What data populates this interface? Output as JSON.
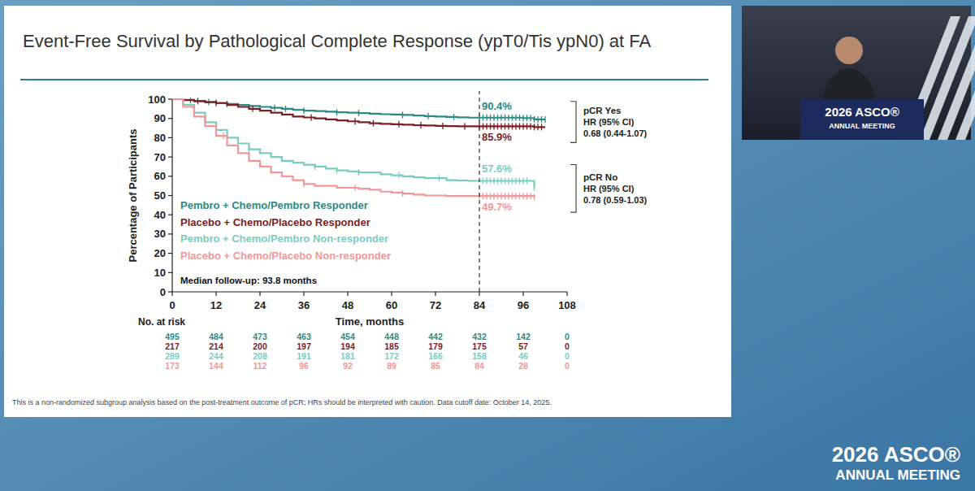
{
  "chart_data": {
    "type": "step",
    "title": "Event-Free Survival by Pathological Complete Response (ypT0/Tis ypN0) at FA",
    "x_label": "Time, months",
    "y_label": "Percentage of Participants",
    "x": [
      0,
      3,
      6,
      9,
      12,
      15,
      18,
      21,
      24,
      27,
      30,
      33,
      36,
      39,
      42,
      45,
      48,
      51,
      54,
      57,
      60,
      63,
      66,
      69,
      72,
      75,
      78,
      81,
      84,
      87,
      90,
      93,
      96,
      99,
      102
    ],
    "series": [
      {
        "name": "Pembro + Chemo/Pembro Responder",
        "color": "#2b8a85",
        "values": [
          100,
          99.6,
          99,
          98.5,
          98,
          97.5,
          97,
          96.5,
          96,
          95.5,
          95,
          94.5,
          94,
          93.8,
          93.5,
          93.2,
          93,
          92.8,
          92.5,
          92.2,
          92,
          91.8,
          91.5,
          91.2,
          91,
          90.8,
          90.6,
          90.4,
          90.4,
          90.4,
          90.4,
          90.4,
          90.2,
          89.5,
          89.5
        ],
        "censored": [
          5,
          10,
          15,
          28,
          31,
          36,
          45,
          51,
          63,
          70,
          77,
          84,
          85,
          86,
          87,
          88,
          89,
          90,
          91,
          92,
          93,
          94,
          95,
          96,
          97,
          98,
          99,
          100,
          101,
          102
        ]
      },
      {
        "name": "Placebo + Chemo/Placebo Responder",
        "color": "#7a1e24",
        "values": [
          100,
          99.5,
          99,
          98.5,
          98,
          97,
          96,
          95,
          94,
          93,
          92,
          91,
          90.5,
          90,
          89.5,
          89,
          88.5,
          88,
          87.5,
          87.2,
          87,
          86.8,
          86.5,
          86.3,
          86.1,
          86,
          85.9,
          85.9,
          85.9,
          85.9,
          85.9,
          85.9,
          85.9,
          85.5,
          85.5
        ],
        "censored": [
          7,
          12,
          22,
          38,
          50,
          55,
          62,
          68,
          74,
          80,
          84,
          85,
          86,
          87,
          88,
          89,
          90,
          91,
          92,
          93,
          94,
          95,
          96,
          97,
          98,
          99,
          100,
          101
        ]
      },
      {
        "name": "Pembro + Chemo/Pembro Non-responder",
        "color": "#78cdbd",
        "values": [
          100,
          97,
          93,
          88,
          84,
          80,
          77,
          74,
          72,
          70,
          68,
          67,
          66,
          65,
          64,
          63,
          62.5,
          62,
          62,
          61,
          60.5,
          60,
          59.5,
          59,
          59,
          58,
          57.8,
          57.6,
          57.6,
          57.6,
          57.6,
          57.6,
          57.6,
          54,
          null
        ],
        "censored": [
          6,
          21,
          39,
          45,
          51,
          62,
          73,
          85,
          86,
          87,
          88,
          89,
          90,
          91,
          92,
          93,
          94,
          95,
          96,
          97,
          99
        ]
      },
      {
        "name": "Placebo + Chemo/Placebo Non-responder",
        "color": "#f09898",
        "values": [
          100,
          96,
          91,
          86,
          81,
          76,
          72,
          68,
          65,
          62,
          60,
          58,
          56,
          55,
          55,
          54,
          54,
          53.5,
          53,
          52,
          51.5,
          51,
          50.5,
          50,
          50,
          49.7,
          49.7,
          49.7,
          49.7,
          49.7,
          49.7,
          49.7,
          49.7,
          49,
          null
        ],
        "censored": [
          14,
          36,
          50,
          63,
          84,
          85,
          86,
          87,
          88,
          89,
          90,
          91,
          92,
          93,
          94,
          95,
          96,
          97,
          98,
          99
        ]
      }
    ],
    "xlim": [
      0,
      108
    ],
    "xticks": [
      0,
      12,
      24,
      36,
      48,
      60,
      72,
      84,
      96,
      108
    ],
    "ylim": [
      0,
      100
    ],
    "yticks": [
      0,
      10,
      20,
      30,
      40,
      50,
      60,
      70,
      80,
      90,
      100
    ],
    "grid": false,
    "legend": "left",
    "reference_x": 84,
    "annotations": [
      {
        "x": 84,
        "y": 90.4,
        "label": "90.4%"
      },
      {
        "x": 84,
        "y": 85.9,
        "label": "85.9%"
      },
      {
        "x": 84,
        "y": 57.6,
        "label": "57.6%"
      },
      {
        "x": 84,
        "y": 49.7,
        "label": "49.7%"
      }
    ],
    "hr_brackets": [
      {
        "title": "pCR Yes",
        "subtitle": "HR (95% CI)",
        "text": "0.68 (0.44-1.07)"
      },
      {
        "title": "pCR No",
        "subtitle": "HR (95% CI)",
        "text": "0.78 (0.59-1.03)"
      }
    ],
    "note": "Median follow-up: 93.8 months",
    "risk_table": {
      "title": "No. at risk",
      "counts": [
        [
          495,
          484,
          473,
          463,
          454,
          448,
          442,
          432,
          142,
          0
        ],
        [
          217,
          214,
          200,
          197,
          194,
          185,
          179,
          175,
          57,
          0
        ],
        [
          289,
          244,
          208,
          191,
          181,
          172,
          166,
          158,
          46,
          0
        ],
        [
          173,
          144,
          112,
          96,
          92,
          89,
          85,
          84,
          28,
          0
        ]
      ]
    },
    "footnote": "This is a non-randomized subgroup analysis based on the post-treatment outcome of pCR; HRs should be interpreted with caution. Data cutoff date: October 14, 2025."
  },
  "page": {
    "podium_lines": [
      "2026 ASCO®",
      "ANNUAL MEETING"
    ],
    "logo_lines": [
      "2026 ASCO®",
      "ANNUAL MEETING"
    ]
  }
}
